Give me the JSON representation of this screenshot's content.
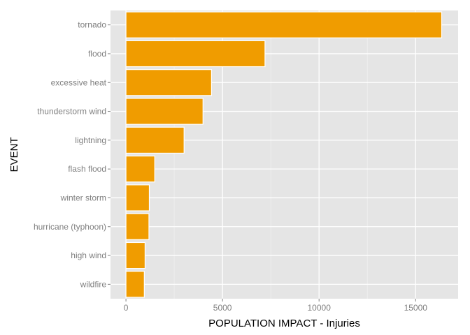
{
  "chart_data": {
    "type": "bar",
    "orientation": "horizontal",
    "xlabel": "POPULATION IMPACT - Injuries",
    "ylabel": "EVENT",
    "categories": [
      "tornado",
      "flood",
      "excessive heat",
      "thunderstorm wind",
      "lightning",
      "flash flood",
      "winter storm",
      "hurricane (typhoon)",
      "high wind",
      "wildfire"
    ],
    "values": [
      16350,
      7200,
      4430,
      3990,
      3010,
      1490,
      1210,
      1190,
      990,
      950
    ],
    "xlim": [
      -800,
      17200
    ],
    "xticks": [
      0,
      5000,
      10000,
      15000
    ],
    "xtick_labels": [
      "0",
      "5000",
      "10000",
      "15000"
    ],
    "grid": true,
    "legend": "none",
    "colors": {
      "bar_fill": "#f09c00",
      "bar_outline": "#ffffff",
      "panel": "#e5e5e5",
      "grid_major": "#ffffff",
      "grid_minor": "#f2f2f2"
    }
  }
}
